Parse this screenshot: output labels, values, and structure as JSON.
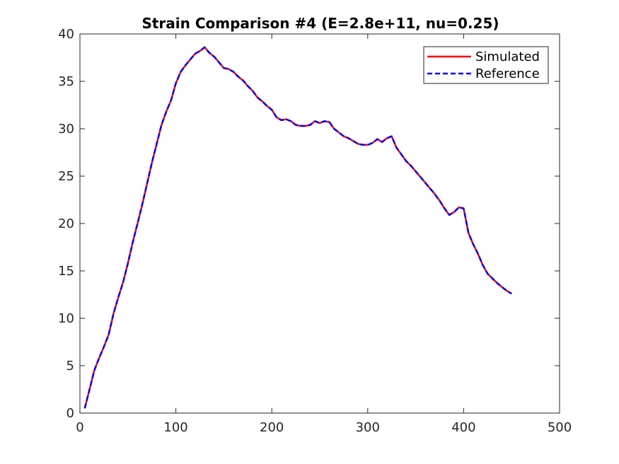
{
  "chart_data": {
    "type": "line",
    "title": "Strain Comparison #4 (E=2.8e+11, nu=0.25)",
    "xlabel": "",
    "ylabel": "",
    "xlim": [
      0,
      500
    ],
    "ylim": [
      0,
      40
    ],
    "xticks": [
      0,
      100,
      200,
      300,
      400,
      500
    ],
    "yticks": [
      0,
      5,
      10,
      15,
      20,
      25,
      30,
      35,
      40
    ],
    "grid": false,
    "legend_position": "top-right",
    "series": [
      {
        "name": "Simulated",
        "color": "#ff0000",
        "style": "solid",
        "x": [
          5,
          10,
          15,
          20,
          25,
          30,
          35,
          40,
          45,
          50,
          55,
          60,
          65,
          70,
          75,
          80,
          85,
          90,
          95,
          100,
          105,
          110,
          115,
          120,
          125,
          130,
          135,
          140,
          145,
          150,
          155,
          160,
          165,
          170,
          175,
          180,
          185,
          190,
          195,
          200,
          205,
          210,
          215,
          220,
          225,
          230,
          235,
          240,
          245,
          250,
          255,
          260,
          265,
          270,
          275,
          280,
          285,
          290,
          295,
          300,
          305,
          310,
          315,
          320,
          325,
          330,
          335,
          340,
          345,
          350,
          355,
          360,
          365,
          370,
          375,
          380,
          385,
          390,
          395,
          400,
          405,
          410,
          415,
          420,
          425,
          430,
          435,
          440,
          445,
          450
        ],
        "y": [
          0.5,
          2.5,
          4.5,
          5.8,
          7.0,
          8.3,
          10.5,
          12.2,
          13.8,
          15.8,
          18.0,
          20.0,
          22.0,
          24.2,
          26.4,
          28.4,
          30.4,
          31.8,
          33.0,
          34.8,
          36.0,
          36.7,
          37.3,
          37.9,
          38.2,
          38.6,
          38.0,
          37.6,
          37.0,
          36.4,
          36.3,
          36.0,
          35.5,
          35.1,
          34.5,
          34.0,
          33.3,
          32.9,
          32.4,
          32.0,
          31.2,
          30.9,
          31.0,
          30.8,
          30.4,
          30.3,
          30.3,
          30.4,
          30.8,
          30.6,
          30.8,
          30.7,
          30.0,
          29.6,
          29.2,
          29.0,
          28.7,
          28.4,
          28.3,
          28.3,
          28.5,
          28.9,
          28.6,
          29.0,
          29.2,
          28.0,
          27.3,
          26.6,
          26.1,
          25.5,
          24.9,
          24.3,
          23.7,
          23.1,
          22.4,
          21.6,
          20.9,
          21.2,
          21.7,
          21.6,
          19.0,
          17.8,
          16.8,
          15.6,
          14.7,
          14.2,
          13.7,
          13.3,
          12.9,
          12.6
        ]
      },
      {
        "name": "Reference",
        "color": "#0000ff",
        "style": "dashed",
        "x": [
          5,
          10,
          15,
          20,
          25,
          30,
          35,
          40,
          45,
          50,
          55,
          60,
          65,
          70,
          75,
          80,
          85,
          90,
          95,
          100,
          105,
          110,
          115,
          120,
          125,
          130,
          135,
          140,
          145,
          150,
          155,
          160,
          165,
          170,
          175,
          180,
          185,
          190,
          195,
          200,
          205,
          210,
          215,
          220,
          225,
          230,
          235,
          240,
          245,
          250,
          255,
          260,
          265,
          270,
          275,
          280,
          285,
          290,
          295,
          300,
          305,
          310,
          315,
          320,
          325,
          330,
          335,
          340,
          345,
          350,
          355,
          360,
          365,
          370,
          375,
          380,
          385,
          390,
          395,
          400,
          405,
          410,
          415,
          420,
          425,
          430,
          435,
          440,
          445,
          450
        ],
        "y": [
          0.5,
          2.5,
          4.5,
          5.8,
          7.0,
          8.3,
          10.5,
          12.2,
          13.8,
          15.8,
          18.0,
          20.0,
          22.0,
          24.2,
          26.4,
          28.4,
          30.4,
          31.8,
          33.0,
          34.8,
          36.0,
          36.7,
          37.3,
          37.9,
          38.2,
          38.6,
          38.0,
          37.6,
          37.0,
          36.4,
          36.3,
          36.0,
          35.5,
          35.1,
          34.5,
          34.0,
          33.3,
          32.9,
          32.4,
          32.0,
          31.2,
          30.9,
          31.0,
          30.8,
          30.4,
          30.3,
          30.3,
          30.4,
          30.8,
          30.6,
          30.8,
          30.7,
          30.0,
          29.6,
          29.2,
          29.0,
          28.7,
          28.4,
          28.3,
          28.3,
          28.5,
          28.9,
          28.6,
          29.0,
          29.2,
          28.0,
          27.3,
          26.6,
          26.1,
          25.5,
          24.9,
          24.3,
          23.7,
          23.1,
          22.4,
          21.6,
          20.9,
          21.2,
          21.7,
          21.6,
          19.0,
          17.8,
          16.8,
          15.6,
          14.7,
          14.2,
          13.7,
          13.3,
          12.9,
          12.6
        ]
      }
    ]
  }
}
